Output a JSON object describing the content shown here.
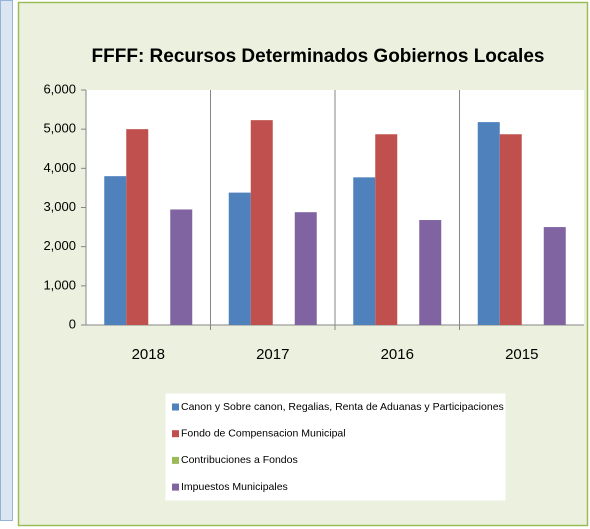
{
  "chart_data": {
    "type": "bar",
    "title": "FFFF: Recursos Determinados Gobiernos Locales",
    "categories": [
      "2018",
      "2017",
      "2016",
      "2015"
    ],
    "series": [
      {
        "name": "Canon y Sobre canon, Regalias, Renta de Aduanas y Participaciones",
        "color": "#4f81bd",
        "values": [
          3800,
          3380,
          3770,
          5180
        ]
      },
      {
        "name": "Fondo de Compensacion Municipal",
        "color": "#c0504d",
        "values": [
          5000,
          5230,
          4870,
          4870
        ]
      },
      {
        "name": "Contribuciones a Fondos",
        "color": "#9bbb59",
        "values": [
          0,
          0,
          0,
          0
        ]
      },
      {
        "name": "Impuestos Municipales",
        "color": "#8064a2",
        "values": [
          2950,
          2880,
          2680,
          2500
        ]
      }
    ],
    "ylim": [
      0,
      6000
    ],
    "yticks": [
      0,
      {
        "value": 1000,
        "label": "1,000"
      },
      {
        "value": 2000,
        "label": "2,000"
      },
      {
        "value": 3000,
        "label": "3,000"
      },
      {
        "value": 4000,
        "label": "4,000"
      },
      {
        "value": 5000,
        "label": "5,000"
      },
      {
        "value": 6000,
        "label": "6,000"
      }
    ],
    "grid": false,
    "legend": "bottom"
  }
}
